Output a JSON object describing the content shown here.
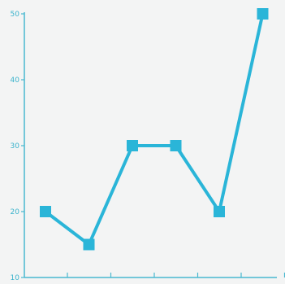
{
  "colors": {
    "background": "#f3f4f4",
    "axis": "#49b8d0",
    "series": "#2ab5d8"
  },
  "chart_data": {
    "type": "line",
    "title": "",
    "xlabel": "",
    "ylabel": "",
    "x": [
      1,
      2,
      3,
      4,
      5,
      6
    ],
    "ylim": [
      10,
      50
    ],
    "yticks": [
      10,
      20,
      30,
      40,
      50
    ],
    "ytick_labels": [
      "10",
      "20",
      "30",
      "40",
      "50"
    ],
    "xtick_count": 6,
    "grid": false,
    "legend": "none",
    "marker": "square",
    "series": [
      {
        "values": [
          20,
          15,
          30,
          30,
          20,
          50
        ]
      }
    ]
  }
}
